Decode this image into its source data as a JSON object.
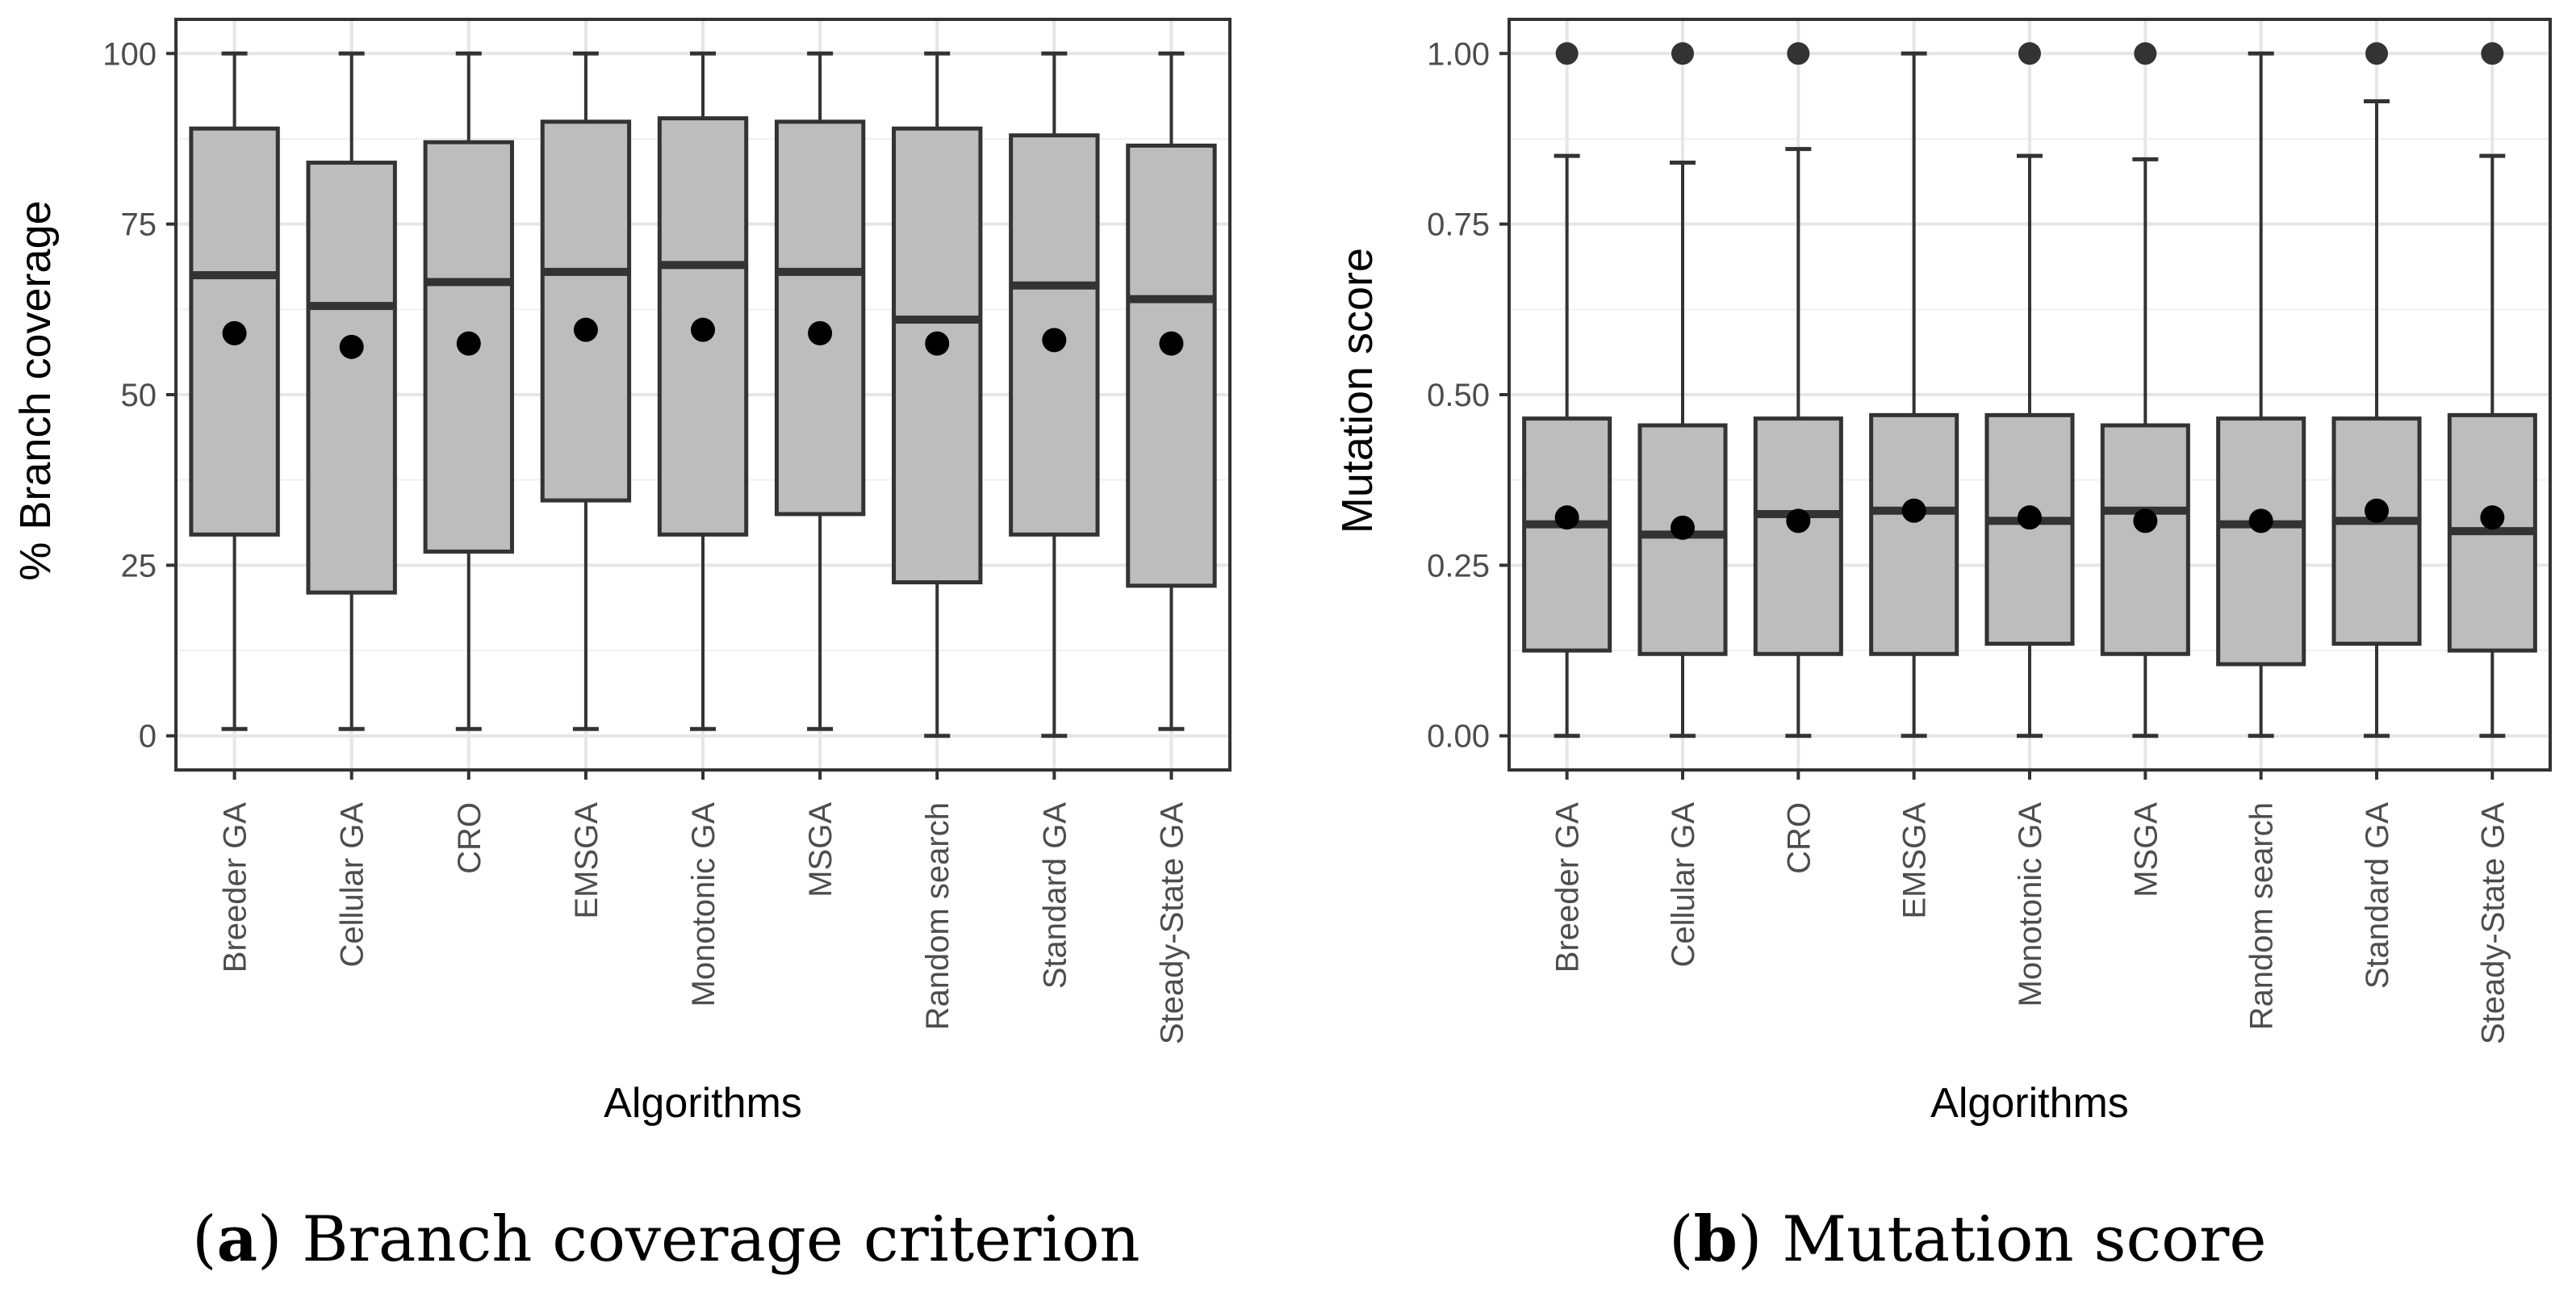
{
  "chart_data": [
    {
      "type": "boxplot",
      "panel": "a",
      "xlabel": "Algorithms",
      "ylabel": "% Branch coverage",
      "ylim": [
        -5,
        105
      ],
      "yticks": [
        0,
        25,
        50,
        75,
        100
      ],
      "ytick_labels": [
        "0",
        "25",
        "50",
        "75",
        "100"
      ],
      "grid": true,
      "categories": [
        "Breeder GA",
        "Cellular GA",
        "CRO",
        "EMSGA",
        "Monotonic GA",
        "MSGA",
        "Random search",
        "Standard GA",
        "Steady-State GA"
      ],
      "boxes": [
        {
          "min": 1,
          "q1": 29.5,
          "median": 67.5,
          "q3": 89,
          "max": 100,
          "mean": 59,
          "outliers": []
        },
        {
          "min": 1,
          "q1": 21,
          "median": 63,
          "q3": 84,
          "max": 100,
          "mean": 57,
          "outliers": []
        },
        {
          "min": 1,
          "q1": 27,
          "median": 66.5,
          "q3": 87,
          "max": 100,
          "mean": 57.5,
          "outliers": []
        },
        {
          "min": 1,
          "q1": 34.5,
          "median": 68,
          "q3": 90,
          "max": 100,
          "mean": 59.5,
          "outliers": []
        },
        {
          "min": 1,
          "q1": 29.5,
          "median": 69,
          "q3": 90.5,
          "max": 100,
          "mean": 59.5,
          "outliers": []
        },
        {
          "min": 1,
          "q1": 32.5,
          "median": 68,
          "q3": 90,
          "max": 100,
          "mean": 59,
          "outliers": []
        },
        {
          "min": 0,
          "q1": 22.5,
          "median": 61,
          "q3": 89,
          "max": 100,
          "mean": 57.5,
          "outliers": []
        },
        {
          "min": 0,
          "q1": 29.5,
          "median": 66,
          "q3": 88,
          "max": 100,
          "mean": 58,
          "outliers": []
        },
        {
          "min": 1,
          "q1": 22,
          "median": 64,
          "q3": 86.5,
          "max": 100,
          "mean": 57.5,
          "outliers": []
        }
      ]
    },
    {
      "type": "boxplot",
      "panel": "b",
      "xlabel": "Algorithms",
      "ylabel": "Mutation score",
      "ylim": [
        -0.05,
        1.05
      ],
      "yticks": [
        0,
        0.25,
        0.5,
        0.75,
        1.0
      ],
      "ytick_labels": [
        "0.00",
        "0.25",
        "0.50",
        "0.75",
        "1.00"
      ],
      "grid": true,
      "categories": [
        "Breeder GA",
        "Cellular GA",
        "CRO",
        "EMSGA",
        "Monotonic GA",
        "MSGA",
        "Random search",
        "Standard GA",
        "Steady-State GA"
      ],
      "boxes": [
        {
          "min": 0,
          "q1": 0.125,
          "median": 0.31,
          "q3": 0.465,
          "max": 0.85,
          "mean": 0.32,
          "outliers": [
            1.0
          ]
        },
        {
          "min": 0,
          "q1": 0.12,
          "median": 0.295,
          "q3": 0.455,
          "max": 0.84,
          "mean": 0.305,
          "outliers": [
            1.0
          ]
        },
        {
          "min": 0,
          "q1": 0.12,
          "median": 0.325,
          "q3": 0.465,
          "max": 0.86,
          "mean": 0.315,
          "outliers": [
            1.0
          ]
        },
        {
          "min": 0,
          "q1": 0.12,
          "median": 0.33,
          "q3": 0.47,
          "max": 1.0,
          "mean": 0.33,
          "outliers": []
        },
        {
          "min": 0,
          "q1": 0.135,
          "median": 0.315,
          "q3": 0.47,
          "max": 0.85,
          "mean": 0.32,
          "outliers": [
            1.0
          ]
        },
        {
          "min": 0,
          "q1": 0.12,
          "median": 0.33,
          "q3": 0.455,
          "max": 0.845,
          "mean": 0.315,
          "outliers": [
            1.0
          ]
        },
        {
          "min": 0,
          "q1": 0.105,
          "median": 0.31,
          "q3": 0.465,
          "max": 1.0,
          "mean": 0.315,
          "outliers": []
        },
        {
          "min": 0,
          "q1": 0.135,
          "median": 0.315,
          "q3": 0.465,
          "max": 0.93,
          "mean": 0.33,
          "outliers": [
            1.0
          ]
        },
        {
          "min": 0,
          "q1": 0.125,
          "median": 0.3,
          "q3": 0.47,
          "max": 0.85,
          "mean": 0.32,
          "outliers": [
            1.0
          ]
        }
      ]
    }
  ],
  "captions": [
    {
      "letter": "a",
      "text": " Branch coverage criterion"
    },
    {
      "letter": "b",
      "text": " Mutation score"
    }
  ]
}
